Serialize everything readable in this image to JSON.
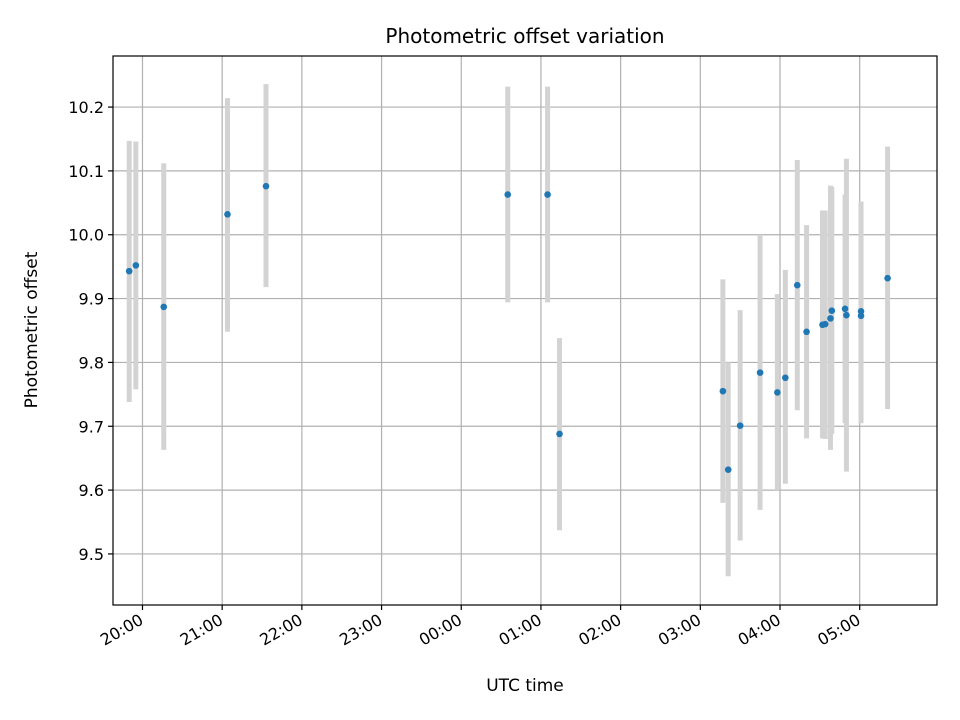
{
  "chart_data": {
    "type": "scatter",
    "title": "Photometric offset variation",
    "xlabel": "UTC time",
    "ylabel": "Photometric offset",
    "grid": true,
    "xlim_hours_since_19": [
      0.63,
      10.97
    ],
    "ylim": [
      9.42,
      10.28
    ],
    "x_ticks": [
      {
        "label": "20:00",
        "h": 1
      },
      {
        "label": "21:00",
        "h": 2
      },
      {
        "label": "22:00",
        "h": 3
      },
      {
        "label": "23:00",
        "h": 4
      },
      {
        "label": "00:00",
        "h": 5
      },
      {
        "label": "01:00",
        "h": 6
      },
      {
        "label": "02:00",
        "h": 7
      },
      {
        "label": "03:00",
        "h": 8
      },
      {
        "label": "04:00",
        "h": 9
      },
      {
        "label": "05:00",
        "h": 10
      }
    ],
    "y_ticks": [
      {
        "label": "9.5",
        "v": 9.5
      },
      {
        "label": "9.6",
        "v": 9.6
      },
      {
        "label": "9.7",
        "v": 9.7
      },
      {
        "label": "9.8",
        "v": 9.8
      },
      {
        "label": "9.9",
        "v": 9.9
      },
      {
        "label": "10.0",
        "v": 10.0
      },
      {
        "label": "10.1",
        "v": 10.1
      },
      {
        "label": "10.2",
        "v": 10.2
      }
    ],
    "marker_color": "#1f77b4",
    "errorbar_color": "#d3d3d3",
    "points": [
      {
        "time": "19:50",
        "y": 9.943,
        "low": 9.738,
        "high": 10.147
      },
      {
        "time": "19:55",
        "y": 9.952,
        "low": 9.758,
        "high": 10.146
      },
      {
        "time": "20:16",
        "y": 9.887,
        "low": 9.663,
        "high": 10.112
      },
      {
        "time": "21:04",
        "y": 10.032,
        "low": 9.848,
        "high": 10.214
      },
      {
        "time": "21:33",
        "y": 10.076,
        "low": 9.918,
        "high": 10.236
      },
      {
        "time": "00:35",
        "y": 10.063,
        "low": 9.894,
        "high": 10.232
      },
      {
        "time": "01:05",
        "y": 10.063,
        "low": 9.894,
        "high": 10.232
      },
      {
        "time": "01:14",
        "y": 9.688,
        "low": 9.537,
        "high": 9.838
      },
      {
        "time": "03:17",
        "y": 9.755,
        "low": 9.58,
        "high": 9.93
      },
      {
        "time": "03:21",
        "y": 9.632,
        "low": 9.465,
        "high": 9.8
      },
      {
        "time": "03:30",
        "y": 9.701,
        "low": 9.521,
        "high": 9.882
      },
      {
        "time": "03:45",
        "y": 9.784,
        "low": 9.569,
        "high": 10.0
      },
      {
        "time": "03:58",
        "y": 9.753,
        "low": 9.6,
        "high": 9.907
      },
      {
        "time": "04:04",
        "y": 9.776,
        "low": 9.61,
        "high": 9.945
      },
      {
        "time": "04:13",
        "y": 9.921,
        "low": 9.725,
        "high": 10.117
      },
      {
        "time": "04:20",
        "y": 9.848,
        "low": 9.681,
        "high": 10.015
      },
      {
        "time": "04:32",
        "y": 9.859,
        "low": 9.681,
        "high": 10.038
      },
      {
        "time": "04:34",
        "y": 9.86,
        "low": 9.68,
        "high": 10.038
      },
      {
        "time": "04:38",
        "y": 9.869,
        "low": 9.663,
        "high": 10.077
      },
      {
        "time": "04:39",
        "y": 9.881,
        "low": 9.688,
        "high": 10.075
      },
      {
        "time": "04:49",
        "y": 9.884,
        "low": 9.705,
        "high": 10.063
      },
      {
        "time": "04:50",
        "y": 9.874,
        "low": 9.629,
        "high": 10.119
      },
      {
        "time": "05:01",
        "y": 9.873,
        "low": 9.705,
        "high": 10.052
      },
      {
        "time": "05:01",
        "y": 9.88,
        "low": 9.705,
        "high": 10.052
      },
      {
        "time": "05:21",
        "y": 9.932,
        "low": 9.727,
        "high": 10.138
      }
    ]
  }
}
